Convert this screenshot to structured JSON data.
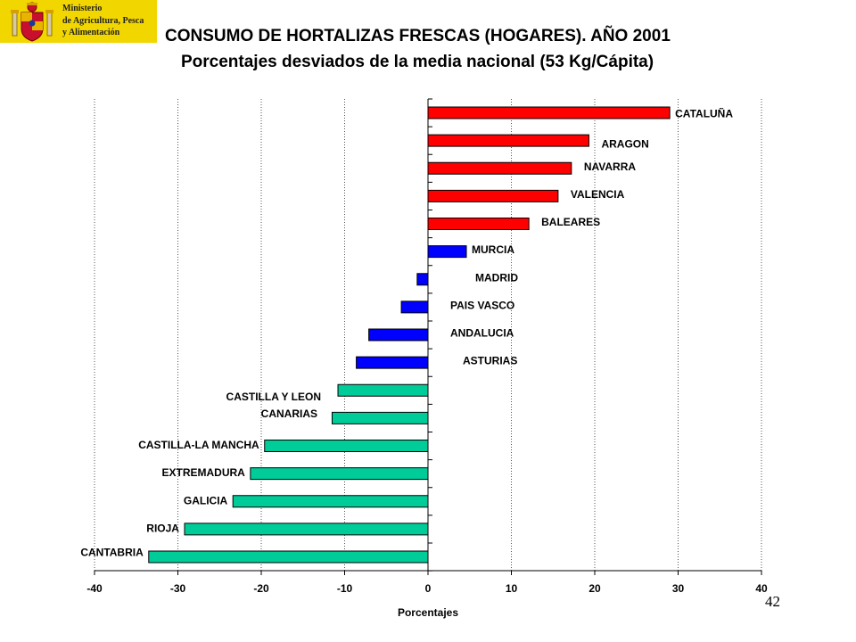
{
  "header": {
    "ministry_lines": [
      "Ministerio",
      "de Agricultura, Pesca",
      "y Alimentación"
    ]
  },
  "page_number": "42",
  "colors": {
    "above_average_high": "#ff0000",
    "above_average_low": "#0000ff",
    "below_average": "#00cc99",
    "logo_background": "#f2d600"
  },
  "chart_data": {
    "type": "bar",
    "orientation": "horizontal",
    "title": "CONSUMO DE HORTALIZAS FRESCAS (HOGARES). AÑO 2001",
    "subtitle": "Porcentajes desviados de la media nacional (53 Kg/Cápita)",
    "xlabel": "Porcentajes",
    "ylabel": "",
    "xlim": [
      -40,
      40
    ],
    "xticks": [
      "-40",
      "-30",
      "-20",
      "-10",
      "0",
      "10",
      "20",
      "30",
      "40"
    ],
    "grid": "vertical dotted",
    "legend": "none",
    "categories": [
      "CATALUÑA",
      "ARAGON",
      "NAVARRA",
      "VALENCIA",
      "BALEARES",
      "MURCIA",
      "MADRID",
      "PAIS VASCO",
      "ANDALUCIA",
      "ASTURIAS",
      "CASTILLA Y LEON",
      "CANARIAS",
      "CASTILLA-LA MANCHA",
      "EXTREMADURA",
      "GALICIA",
      "RIOJA",
      "CANTABRIA"
    ],
    "values": [
      29,
      19.3,
      17.2,
      15.6,
      12.1,
      4.6,
      -1.3,
      -3.2,
      -7.1,
      -8.6,
      -10.8,
      -11.5,
      -19.6,
      -21.3,
      -23.4,
      -29.2,
      -33.5
    ],
    "color_group": [
      "high",
      "high",
      "high",
      "high",
      "high",
      "low",
      "low",
      "low",
      "low",
      "low",
      "below",
      "below",
      "below",
      "below",
      "below",
      "below",
      "below"
    ]
  }
}
